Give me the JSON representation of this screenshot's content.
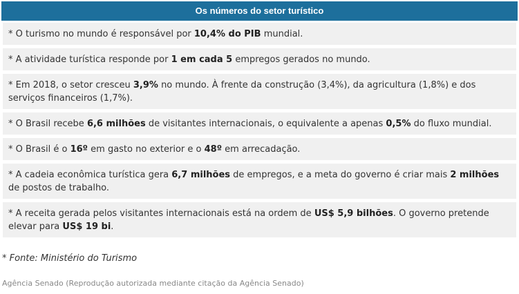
{
  "colors": {
    "header_bg": "#1d6f9c",
    "row_bg": "#f0f0f0",
    "text": "#333333",
    "credit": "#888888"
  },
  "table": {
    "title": "Os números do setor turístico",
    "rows": [
      [
        "* O turismo no mundo é responsável por ",
        {
          "b": "10,4% do PIB"
        },
        " mundial."
      ],
      [
        "* A atividade turística responde por ",
        {
          "b": "1 em cada 5"
        },
        " empregos gerados no mundo."
      ],
      [
        "* Em 2018, o setor cresceu ",
        {
          "b": "3,9%"
        },
        " no mundo. À frente da construção (3,4%), da agricultura (1,8%) e dos serviços financeiros (1,7%)."
      ],
      [
        "* O Brasil recebe ",
        {
          "b": "6,6 milhões"
        },
        " de visitantes internacionais, o equivalente a apenas ",
        {
          "b": "0,5%"
        },
        " do fluxo mundial."
      ],
      [
        "* O Brasil é o ",
        {
          "b": "16º"
        },
        " em gasto no exterior e o ",
        {
          "b": "48º"
        },
        " em arrecadação."
      ],
      [
        "* A cadeia econômica turística gera ",
        {
          "b": "6,7 milhões"
        },
        " de empregos, e a meta do governo é criar mais ",
        {
          "b": "2 milhões"
        },
        " de postos de trabalho."
      ],
      [
        "* A receita gerada pelos visitantes internacionais está na ordem de ",
        {
          "b": "US$ 5,9 bilhões"
        },
        ". O governo pretende elevar para ",
        {
          "b": "US$ 19 bi"
        },
        "."
      ]
    ]
  },
  "source": "* Fonte: Ministério do Turismo",
  "credit": "Agência Senado (Reprodução autorizada mediante citação da Agência Senado)"
}
